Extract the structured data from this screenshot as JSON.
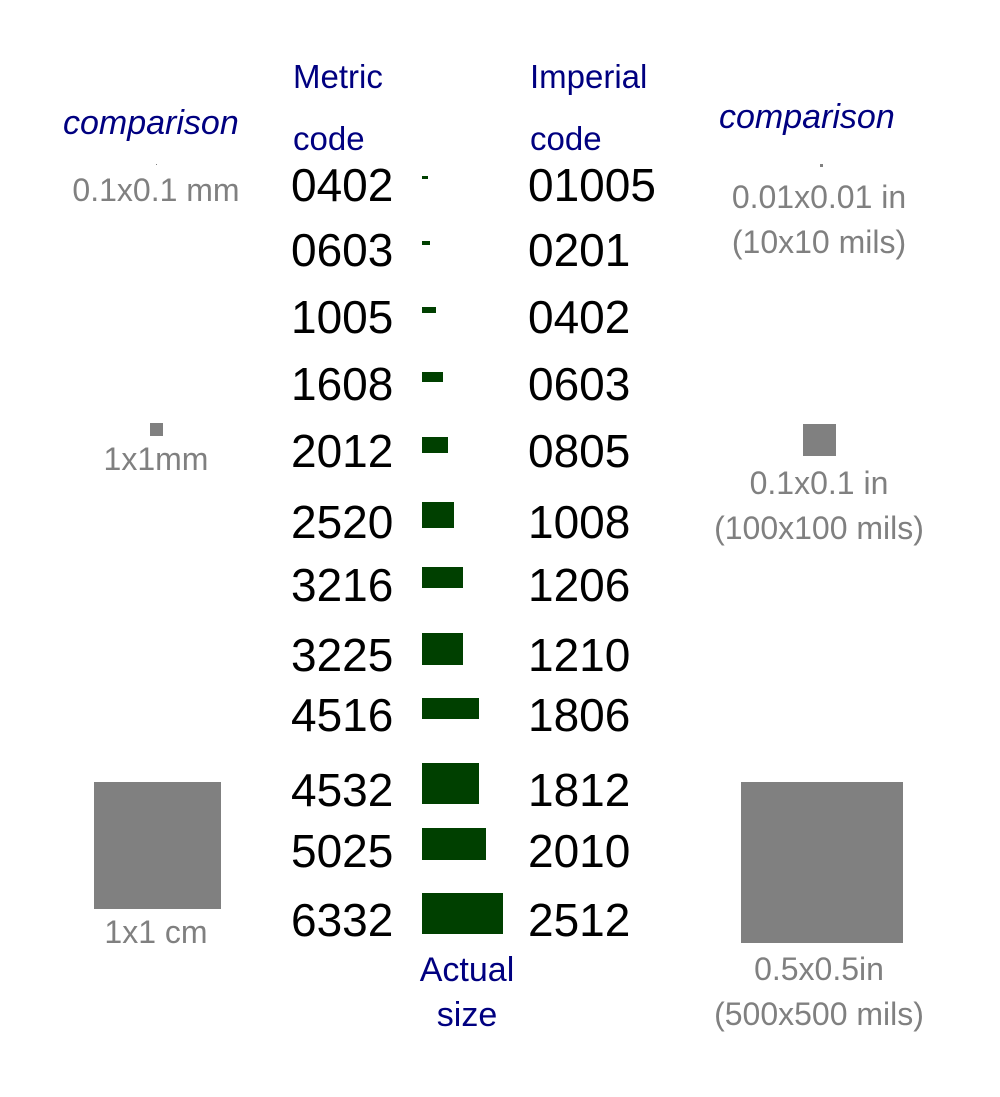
{
  "headers": {
    "metric_line1": "Metric",
    "metric_line2": "code",
    "imperial_line1": "Imperial",
    "imperial_line2": "code",
    "comparison_left": "comparison",
    "comparison_right": "comparison",
    "actual_line1": "Actual",
    "actual_line2": "size"
  },
  "rows": [
    {
      "metric": "0402",
      "imperial": "01005"
    },
    {
      "metric": "0603",
      "imperial": "0201"
    },
    {
      "metric": "1005",
      "imperial": "0402"
    },
    {
      "metric": "1608",
      "imperial": "0603"
    },
    {
      "metric": "2012",
      "imperial": "0805"
    },
    {
      "metric": "2520",
      "imperial": "1008"
    },
    {
      "metric": "3216",
      "imperial": "1206"
    },
    {
      "metric": "3225",
      "imperial": "1210"
    },
    {
      "metric": "4516",
      "imperial": "1806"
    },
    {
      "metric": "4532",
      "imperial": "1812"
    },
    {
      "metric": "5025",
      "imperial": "2010"
    },
    {
      "metric": "6332",
      "imperial": "2512"
    }
  ],
  "metric_comparisons": [
    {
      "label": "0.1x0.1 mm"
    },
    {
      "label": "1x1mm"
    },
    {
      "label": "1x1 cm"
    }
  ],
  "imperial_comparisons": [
    {
      "line1": "0.01x0.01 in",
      "line2": "(10x10 mils)"
    },
    {
      "line1": "0.1x0.1 in",
      "line2": "(100x100 mils)"
    },
    {
      "line1": "0.5x0.5in",
      "line2": "(500x500 mils)"
    }
  ],
  "colors": {
    "header": "#000080",
    "code_text": "#000000",
    "comparison_grey": "#808080",
    "component_green": "#004000"
  }
}
